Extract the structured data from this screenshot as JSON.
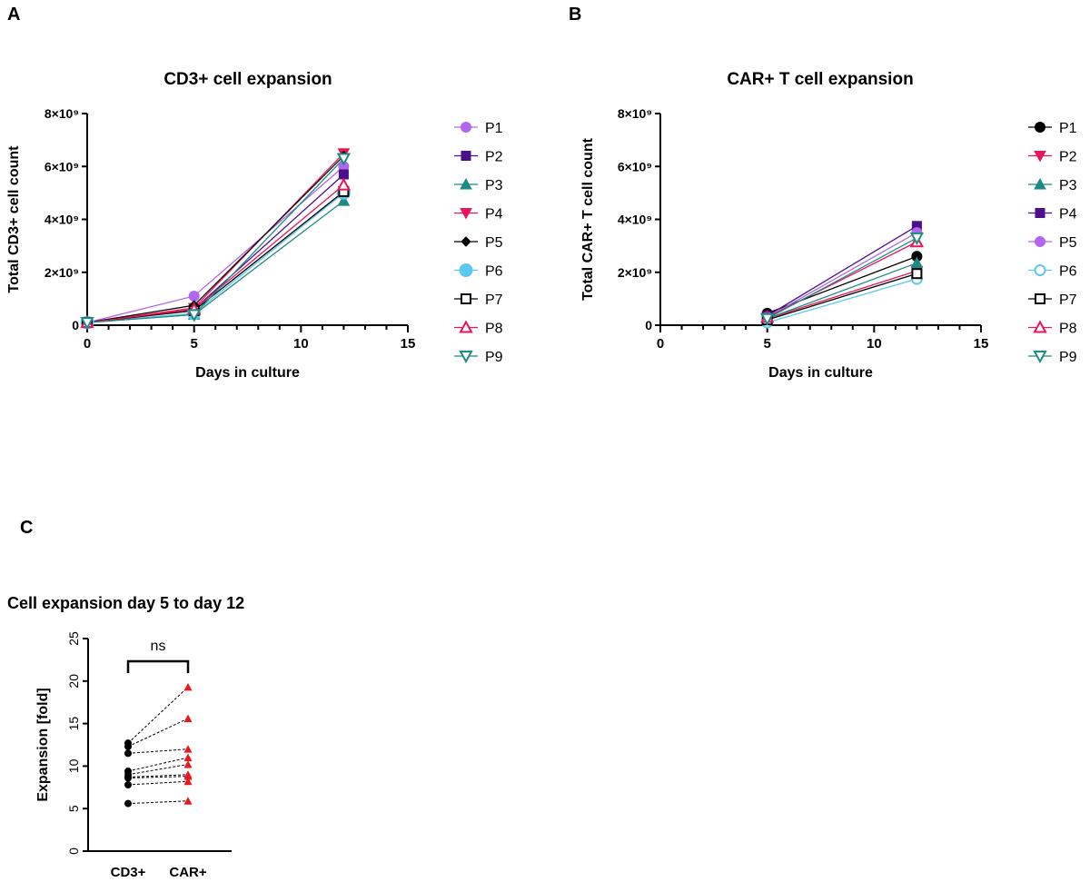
{
  "panel_labels": [
    "A",
    "B",
    "C"
  ],
  "chart_data": [
    {
      "type": "line",
      "title": "CD3+ cell expansion",
      "xlabel": "Days in culture",
      "ylabel": "Total CD3+ cell count",
      "xlim": [
        0,
        15
      ],
      "ylim": [
        0,
        8000000000
      ],
      "xticks": [
        "0",
        "5",
        "10",
        "15"
      ],
      "yticks": [
        "0",
        "2×10⁹",
        "4×10⁹",
        "6×10⁹",
        "8×10⁹"
      ],
      "legend": "right",
      "x": [
        0,
        5,
        12
      ],
      "series": [
        {
          "name": "P1",
          "color": "#b266f0",
          "marker": "circle",
          "values": [
            100000000.0,
            1100000000.0,
            6000000000.0
          ]
        },
        {
          "name": "P2",
          "color": "#4b0f8c",
          "marker": "square",
          "values": [
            100000000.0,
            600000000.0,
            5700000000.0
          ]
        },
        {
          "name": "P3",
          "color": "#1f8a84",
          "marker": "triangle",
          "values": [
            100000000.0,
            400000000.0,
            4700000000.0
          ]
        },
        {
          "name": "P4",
          "color": "#e8155a",
          "marker": "triangle-down",
          "values": [
            100000000.0,
            650000000.0,
            6500000000.0
          ]
        },
        {
          "name": "P5",
          "color": "#000000",
          "marker": "diamond",
          "values": [
            100000000.0,
            750000000.0,
            6400000000.0
          ]
        },
        {
          "name": "P6",
          "color": "#5bc8f0",
          "marker": "circle-big",
          "values": [
            100000000.0,
            450000000.0,
            5000000000.0
          ]
        },
        {
          "name": "P7",
          "color": "#000000",
          "marker": "square-open",
          "values": [
            100000000.0,
            550000000.0,
            5050000000.0
          ]
        },
        {
          "name": "P8",
          "color": "#e8155a",
          "marker": "triangle-open",
          "values": [
            100000000.0,
            600000000.0,
            5300000000.0
          ]
        },
        {
          "name": "P9",
          "color": "#1f8a84",
          "marker": "triangle-down-open",
          "values": [
            100000000.0,
            400000000.0,
            6300000000.0
          ]
        }
      ]
    },
    {
      "type": "line",
      "title": "CAR+ T cell expansion",
      "xlabel": "Days in culture",
      "ylabel": "Total CAR+ T cell count",
      "xlim": [
        0,
        15
      ],
      "ylim": [
        0,
        8000000000
      ],
      "xticks": [
        "0",
        "5",
        "10",
        "15"
      ],
      "yticks": [
        "0",
        "2×10⁹",
        "4×10⁹",
        "6×10⁹",
        "8×10⁹"
      ],
      "legend": "right",
      "x": [
        5,
        12
      ],
      "series": [
        {
          "name": "P1",
          "color": "#000000",
          "marker": "circle",
          "values": [
            450000000.0,
            2600000000.0
          ]
        },
        {
          "name": "P2",
          "color": "#e8155a",
          "marker": "triangle-down",
          "values": [
            250000000.0,
            2050000000.0
          ]
        },
        {
          "name": "P3",
          "color": "#1f8a84",
          "marker": "triangle",
          "values": [
            250000000.0,
            2350000000.0
          ]
        },
        {
          "name": "P4",
          "color": "#4b0f8c",
          "marker": "square",
          "values": [
            350000000.0,
            3750000000.0
          ]
        },
        {
          "name": "P5",
          "color": "#b266f0",
          "marker": "circle",
          "values": [
            300000000.0,
            3500000000.0
          ]
        },
        {
          "name": "P6",
          "color": "#5bc8f0",
          "marker": "circle-open",
          "values": [
            100000000.0,
            1750000000.0
          ]
        },
        {
          "name": "P7",
          "color": "#000000",
          "marker": "square-open",
          "values": [
            200000000.0,
            1950000000.0
          ]
        },
        {
          "name": "P8",
          "color": "#e8155a",
          "marker": "triangle-open",
          "values": [
            300000000.0,
            3150000000.0
          ]
        },
        {
          "name": "P9",
          "color": "#1f8a84",
          "marker": "triangle-down-open",
          "values": [
            250000000.0,
            3300000000.0
          ]
        }
      ]
    },
    {
      "type": "scatter",
      "title": "Cell expansion day 5 to day 12",
      "ylabel": "Expansion [fold]",
      "ylim": [
        0,
        25
      ],
      "yticks": [
        "0",
        "5",
        "10",
        "15",
        "20",
        "25"
      ],
      "categories": [
        "CD3+",
        "CAR+"
      ],
      "annotation": "ns",
      "colors": {
        "CD3+": "#000000",
        "CAR+": "#e8191e"
      },
      "pairs": [
        [
          12.7,
          19.3
        ],
        [
          12.3,
          15.6
        ],
        [
          11.5,
          12.0
        ],
        [
          9.4,
          11.0
        ],
        [
          9.0,
          10.2
        ],
        [
          8.7,
          9.0
        ],
        [
          8.6,
          8.8
        ],
        [
          7.8,
          8.2
        ],
        [
          5.6,
          5.9
        ]
      ]
    }
  ]
}
